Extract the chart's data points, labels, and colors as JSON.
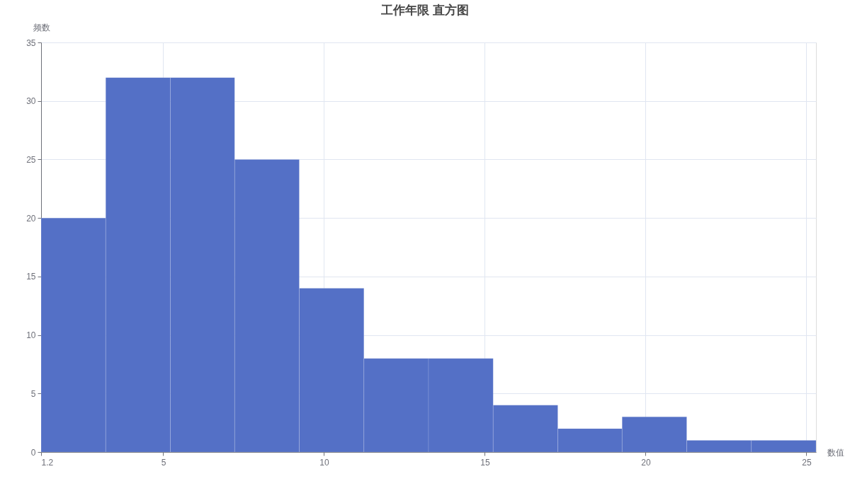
{
  "chart_data": {
    "type": "histogram",
    "title": "工作年限 直方图",
    "xlabel": "数值",
    "ylabel": "频数",
    "bins": [
      1.2,
      3.21,
      5.22,
      7.22,
      9.23,
      11.24,
      13.25,
      15.26,
      17.27,
      19.27,
      21.28,
      23.29,
      25.3
    ],
    "values": [
      20,
      32,
      32,
      25,
      14,
      8,
      8,
      4,
      2,
      3,
      1,
      1
    ],
    "color": "#5470c6",
    "xlim": [
      1.2,
      25.3
    ],
    "xticks": [
      1.2,
      5,
      10,
      15,
      20,
      25
    ],
    "ylim": [
      0,
      35
    ],
    "yticks": [
      0,
      5,
      10,
      15,
      20,
      25,
      30,
      35
    ],
    "grid": true
  }
}
